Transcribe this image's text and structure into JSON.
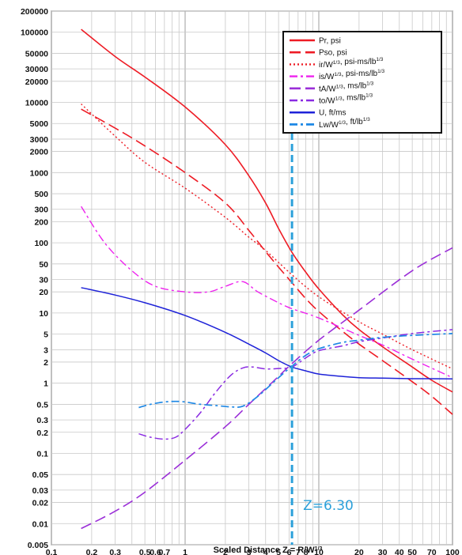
{
  "chart_data": {
    "type": "line",
    "title": "",
    "xlabel": "Scaled Distance Z = R/W^1/3",
    "ylabel": "",
    "x_scale": "log",
    "y_scale": "log",
    "xlim": [
      0.1,
      100
    ],
    "ylim": [
      0.005,
      200000
    ],
    "grid": true,
    "legend_position": "top-right",
    "x_tick_labels": [
      {
        "v": 0.1,
        "t": "0.1"
      },
      {
        "v": 0.2,
        "t": "0.2"
      },
      {
        "v": 0.3,
        "t": "0.3"
      },
      {
        "v": 0.5,
        "t": "0.5"
      },
      {
        "v": 0.6,
        "t": "0.6"
      },
      {
        "v": 0.7,
        "t": "0.7"
      },
      {
        "v": 1,
        "t": "1"
      },
      {
        "v": 2,
        "t": "2"
      },
      {
        "v": 3,
        "t": "3"
      },
      {
        "v": 4,
        "t": "4"
      },
      {
        "v": 5,
        "t": "5"
      },
      {
        "v": 6,
        "t": "6"
      },
      {
        "v": 7,
        "t": "7"
      },
      {
        "v": 8,
        "t": "8"
      },
      {
        "v": 10,
        "t": "10"
      },
      {
        "v": 20,
        "t": "20"
      },
      {
        "v": 30,
        "t": "30"
      },
      {
        "v": 40,
        "t": "40"
      },
      {
        "v": 50,
        "t": "50"
      },
      {
        "v": 70,
        "t": "70"
      },
      {
        "v": 100,
        "t": "100"
      }
    ],
    "y_tick_labels": [
      {
        "v": 200000,
        "t": "200000"
      },
      {
        "v": 100000,
        "t": "100000"
      },
      {
        "v": 50000,
        "t": "50000"
      },
      {
        "v": 30000,
        "t": "30000"
      },
      {
        "v": 20000,
        "t": "20000"
      },
      {
        "v": 10000,
        "t": "10000"
      },
      {
        "v": 5000,
        "t": "5000"
      },
      {
        "v": 3000,
        "t": "3000"
      },
      {
        "v": 2000,
        "t": "2000"
      },
      {
        "v": 1000,
        "t": "1000"
      },
      {
        "v": 500,
        "t": "500"
      },
      {
        "v": 300,
        "t": "300"
      },
      {
        "v": 200,
        "t": "200"
      },
      {
        "v": 100,
        "t": "100"
      },
      {
        "v": 50,
        "t": "50"
      },
      {
        "v": 30,
        "t": "30"
      },
      {
        "v": 20,
        "t": "20"
      },
      {
        "v": 10,
        "t": "10"
      },
      {
        "v": 5,
        "t": "5"
      },
      {
        "v": 3,
        "t": "3"
      },
      {
        "v": 2,
        "t": "2"
      },
      {
        "v": 1,
        "t": "1"
      },
      {
        "v": 0.5,
        "t": "0.5"
      },
      {
        "v": 0.3,
        "t": "0.3"
      },
      {
        "v": 0.2,
        "t": "0.2"
      },
      {
        "v": 0.1,
        "t": "0.1"
      },
      {
        "v": 0.05,
        "t": "0.05"
      },
      {
        "v": 0.03,
        "t": "0.03"
      },
      {
        "v": 0.02,
        "t": "0.02"
      },
      {
        "v": 0.01,
        "t": "0.01"
      },
      {
        "v": 0.005,
        "t": "0.005"
      }
    ],
    "series": [
      {
        "name": "Pr, psi",
        "color": "#ee1c25",
        "style": "solid",
        "width": 1.6,
        "x": [
          0.167,
          0.3,
          0.5,
          1,
          2,
          3,
          4,
          5,
          6.3,
          8,
          10,
          15,
          20,
          30,
          50,
          70,
          100
        ],
        "y": [
          110000,
          45000,
          23000,
          8600,
          2500,
          900,
          370,
          160,
          73,
          38,
          22,
          9.5,
          5.8,
          3.3,
          1.7,
          1.1,
          0.75
        ]
      },
      {
        "name": "Pso, psi",
        "color": "#ee1c25",
        "style": "longdash",
        "width": 1.6,
        "x": [
          0.167,
          0.3,
          0.5,
          1,
          2,
          3,
          4,
          5,
          6.3,
          8,
          10,
          15,
          20,
          30,
          50,
          70,
          100
        ],
        "y": [
          8000,
          4300,
          2400,
          1000,
          370,
          150,
          75,
          45,
          27,
          16,
          10.5,
          5.5,
          3.6,
          2.1,
          1.05,
          0.65,
          0.36
        ]
      },
      {
        "name": "ir/W^1/3, psi-ms/lb^1/3",
        "color": "#ee1c25",
        "style": "dot",
        "width": 1.4,
        "x": [
          0.167,
          0.3,
          0.5,
          1,
          2,
          3,
          4,
          6.3,
          10,
          20,
          30,
          50,
          100
        ],
        "y": [
          9500,
          3300,
          1400,
          600,
          230,
          120,
          78,
          35,
          17,
          7.5,
          5,
          3,
          1.6
        ]
      },
      {
        "name": "is/W^1/3, psi-ms/lb^1/3",
        "color": "#ee22ee",
        "style": "dashdot",
        "width": 1.4,
        "x": [
          0.167,
          0.25,
          0.4,
          0.6,
          1,
          1.5,
          2,
          2.7,
          3.5,
          5,
          6.3,
          10,
          20,
          30,
          50,
          100
        ],
        "y": [
          330,
          100,
          40,
          24,
          20,
          20,
          24,
          28,
          20,
          14,
          11.5,
          8.5,
          4.8,
          3.5,
          2.2,
          1.2
        ]
      },
      {
        "name": "tA/W^1/3, ms/lb^1/3",
        "color": "#9b2fd8",
        "style": "longdash",
        "width": 1.6,
        "x": [
          0.167,
          0.3,
          0.5,
          1,
          2,
          3,
          5,
          6.3,
          10,
          20,
          50,
          100
        ],
        "y": [
          0.0085,
          0.015,
          0.028,
          0.08,
          0.24,
          0.5,
          1.25,
          1.9,
          4.1,
          11,
          40,
          85
        ]
      },
      {
        "name": "to/W^1/3, ms/lb^1/3",
        "color": "#8a2be2",
        "style": "dashdot",
        "width": 1.5,
        "x": [
          0.45,
          0.55,
          0.7,
          0.85,
          1,
          1.3,
          1.7,
          2.2,
          2.7,
          3.2,
          4,
          5,
          6.3,
          8,
          10,
          15,
          20,
          30,
          50,
          100
        ],
        "y": [
          0.19,
          0.17,
          0.16,
          0.17,
          0.22,
          0.38,
          0.75,
          1.3,
          1.65,
          1.7,
          1.6,
          1.62,
          1.7,
          2.3,
          2.9,
          3.4,
          3.9,
          4.4,
          5.1,
          5.8
        ]
      },
      {
        "name": "U, ft/ms",
        "color": "#1e22d8",
        "style": "solid",
        "width": 1.5,
        "x": [
          0.167,
          0.3,
          0.5,
          1,
          2,
          3,
          4,
          5,
          6.3,
          8,
          10,
          15,
          20,
          30,
          50,
          70,
          100
        ],
        "y": [
          23,
          18,
          14,
          9.2,
          5.3,
          3.6,
          2.7,
          2.1,
          1.7,
          1.5,
          1.35,
          1.25,
          1.2,
          1.18,
          1.16,
          1.16,
          1.15
        ]
      },
      {
        "name": "Lw/W^1/3, ft/lb^1/3",
        "color": "#1e88e5",
        "style": "dashdot",
        "width": 1.7,
        "x": [
          0.45,
          0.55,
          0.7,
          0.85,
          1,
          1.3,
          1.7,
          2.2,
          2.7,
          3.5,
          5,
          6.3,
          8,
          10,
          15,
          20,
          30,
          50,
          100
        ],
        "y": [
          0.45,
          0.5,
          0.54,
          0.55,
          0.54,
          0.5,
          0.48,
          0.46,
          0.47,
          0.65,
          1.2,
          1.75,
          2.5,
          3.1,
          3.8,
          4.1,
          4.5,
          4.8,
          5.1
        ]
      }
    ],
    "legend": [
      {
        "label": "Pr, psi"
      },
      {
        "label": "Pso, psi"
      },
      {
        "label": "ir/W1/3, psi-ms/lb1/3"
      },
      {
        "label": "is/W1/3, psi-ms/lb1/3"
      },
      {
        "label": "tA/W1/3, ms/lb1/3"
      },
      {
        "label": "to/W1/3, ms/lb1/3"
      },
      {
        "label": "U, ft/ms"
      },
      {
        "label": "Lw/W1/3, ft/lb1/3"
      }
    ],
    "reference_line": {
      "x": 6.3,
      "label": "Z=6.30",
      "color": "#2ba0da"
    }
  }
}
